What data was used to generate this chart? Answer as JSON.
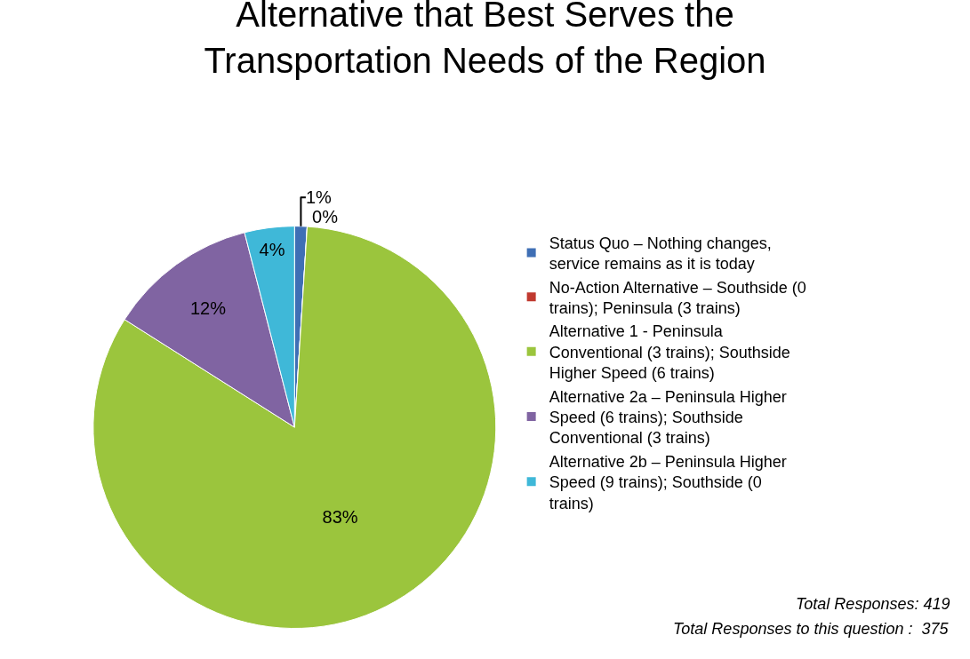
{
  "chart_data": {
    "type": "pie",
    "title": "Alternative that Best Serves the Transportation Needs of the Region",
    "categories": [
      "Status Quo – Nothing changes, service remains as it is today",
      "No-Action Alternative – Southside (0 trains); Peninsula (3 trains)",
      "Alternative 1 - Peninsula Conventional (3 trains); Southside Higher Speed (6 trains)",
      "Alternative 2a – Peninsula Higher Speed (6 trains); Southside Conventional (3 trains)",
      "Alternative 2b – Peninsula Higher Speed (9 trains); Southside (0 trains)"
    ],
    "values": [
      1,
      0,
      83,
      12,
      4
    ],
    "value_labels": [
      "1%",
      "0%",
      "83%",
      "12%",
      "4%"
    ],
    "colors": [
      "#3f6fb5",
      "#c0392f",
      "#9bc53d",
      "#8064a2",
      "#3fb8d8"
    ],
    "legend": "right",
    "annotations": [
      "Total Responses: 419",
      "Total Responses to this question :  375"
    ]
  }
}
